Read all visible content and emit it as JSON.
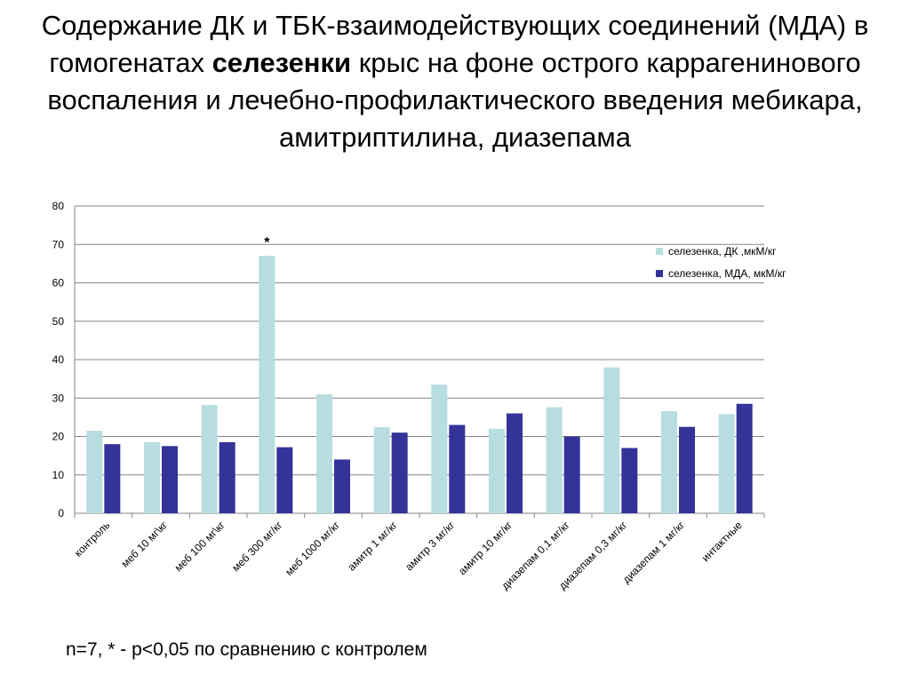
{
  "slide": {
    "title_part1": "Содержание ДК и ТБК-взаимодействующих соединений (МДА) в гомогенатах ",
    "title_bold": "селезенки",
    "title_part2": " крыс на фоне острого каррагенинового воспаления и лечебно-профилактического введения мебикара, амитриптилина, диазепама",
    "footnote": "n=7, * - p<0,05 по сравнению с контролем"
  },
  "chart_data": {
    "type": "bar",
    "categories": [
      "контроль",
      "меб 10 мг\\кг",
      "меб 100 мг\\кг",
      "меб 300 мг/кг",
      "меб 1000 мг/кг",
      "амитр 1 мг/кг",
      "амитр 3 мг/кг",
      "амитр 10 мг/кг",
      "диазепам 0,1 мг/кг",
      "диазепам 0,3 мг/кг",
      "диазепам 1 мг/кг",
      "интактные"
    ],
    "series": [
      {
        "name": "селезенка, ДК ,мкМ/кг",
        "color": "#b7dde0",
        "values": [
          21.5,
          18.5,
          28.2,
          67,
          31,
          22.4,
          33.5,
          22,
          27.6,
          38,
          26.6,
          25.8
        ]
      },
      {
        "name": "селезенка, МДА, мкМ/кг",
        "color": "#333399",
        "values": [
          18,
          17.5,
          18.5,
          17.2,
          14,
          21,
          23,
          26,
          20,
          17,
          22.5,
          28.5
        ]
      }
    ],
    "ylim": [
      0,
      80
    ],
    "yticks": [
      0,
      10,
      20,
      30,
      40,
      50,
      60,
      70,
      80
    ],
    "grid": true,
    "legend_position": "right",
    "annotations": [
      {
        "category_index": 3,
        "text": "*"
      }
    ]
  }
}
